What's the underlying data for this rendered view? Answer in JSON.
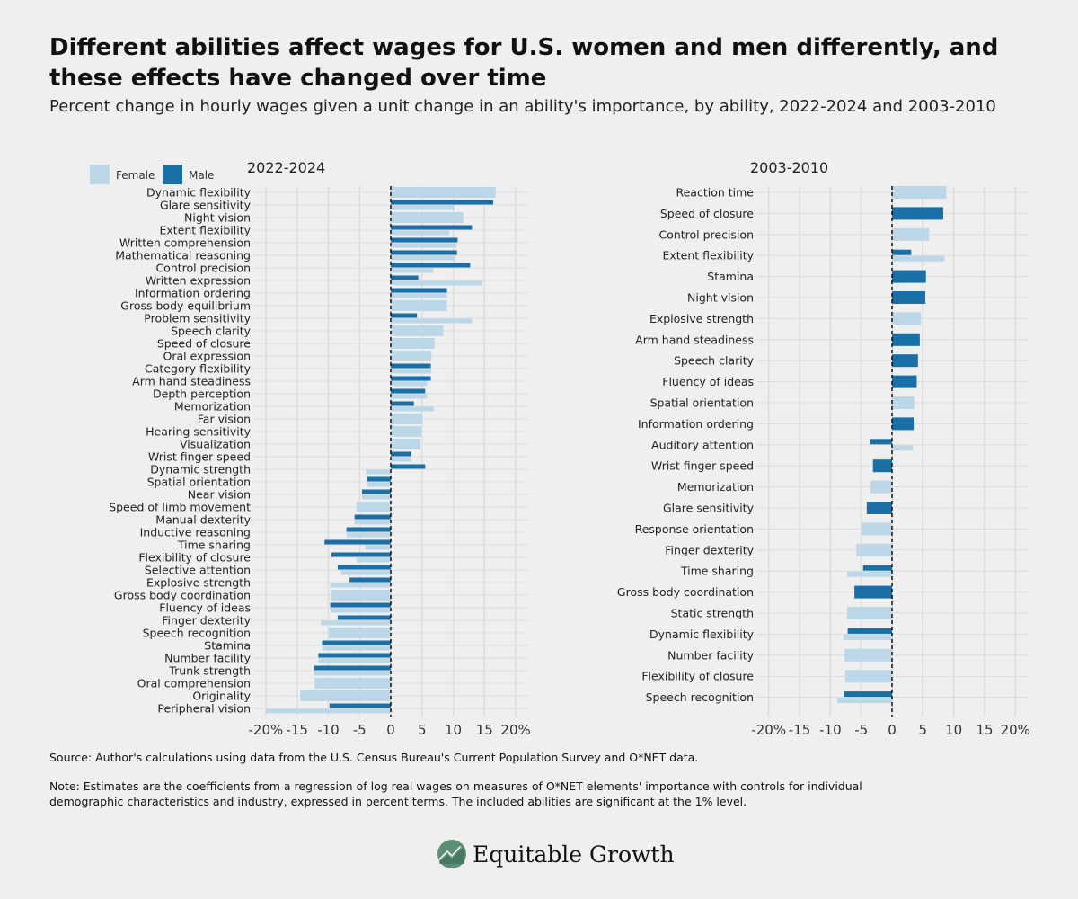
{
  "header": {
    "title": "Different abilities affect wages for U.S. women and men differently, and these effects have changed over time",
    "subtitle": "Percent change in hourly wages given a unit change in an ability's importance, by ability, 2022-2024 and 2003-2010"
  },
  "colors": {
    "female": "#bcd8e8",
    "male": "#1a6fa6",
    "grid": "#dcdcdc",
    "background": "#efefef"
  },
  "legend": {
    "female": "Female",
    "male": "Male"
  },
  "chart_data": [
    {
      "type": "bar",
      "orientation": "horizontal",
      "title": "2022-2024",
      "xlim": [
        -22,
        22
      ],
      "x_ticks": [
        -20,
        -15,
        -10,
        -5,
        0,
        5,
        10,
        15,
        20
      ],
      "x_tick_labels": [
        "-20%",
        "-15",
        "-10",
        "-5",
        "0",
        "5",
        "10",
        "15",
        "20%"
      ],
      "categories": [
        "Dynamic flexibility",
        "Glare sensitivity",
        "Night vision",
        "Extent flexibility",
        "Written comprehension",
        "Mathematical reasoning",
        "Control precision",
        "Written expression",
        "Information ordering",
        "Gross body equilibrium",
        "Problem sensitivity",
        "Speech clarity",
        "Speed of closure",
        "Oral expression",
        "Category flexibility",
        "Arm hand steadiness",
        "Depth perception",
        "Memorization",
        "Far vision",
        "Hearing sensitivity",
        "Visualization",
        "Wrist finger speed",
        "Dynamic strength",
        "Spatial orientation",
        "Near vision",
        "Speed of limb movement",
        "Manual dexterity",
        "Inductive reasoning",
        "Time sharing",
        "Flexibility of closure",
        "Selective attention",
        "Explosive strength",
        "Gross body coordination",
        "Fluency of ideas",
        "Finger dexterity",
        "Speech recognition",
        "Stamina",
        "Number facility",
        "Trunk strength",
        "Oral comprehension",
        "Originality",
        "Peripheral vision"
      ],
      "series": [
        {
          "name": "Female",
          "values": [
            16.8,
            10.2,
            11.6,
            9.4,
            10.5,
            10.3,
            6.8,
            14.5,
            9.0,
            9.0,
            13.0,
            8.4,
            7.0,
            6.5,
            6.5,
            5.8,
            5.8,
            6.9,
            5.1,
            4.9,
            4.7,
            3.3,
            -4.0,
            -3.8,
            -4.6,
            -5.5,
            -5.8,
            -7.1,
            -4.1,
            -5.5,
            -8.0,
            -9.7,
            -9.6,
            -9.7,
            -11.2,
            -9.9,
            -11.0,
            -11.6,
            -12.3,
            -12.2,
            -14.5,
            -20.0
          ]
        },
        {
          "name": "Male",
          "values": [
            null,
            16.4,
            null,
            13.0,
            10.7,
            10.6,
            12.7,
            4.4,
            9.0,
            null,
            4.2,
            null,
            null,
            null,
            6.4,
            6.4,
            5.5,
            3.7,
            null,
            null,
            null,
            3.3,
            5.5,
            -3.8,
            -4.6,
            null,
            -5.8,
            -7.1,
            -10.6,
            -9.5,
            -8.5,
            -6.6,
            null,
            -9.7,
            -8.5,
            null,
            -11.0,
            -11.6,
            -12.3,
            null,
            null,
            -9.8
          ]
        }
      ]
    },
    {
      "type": "bar",
      "orientation": "horizontal",
      "title": "2003-2010",
      "xlim": [
        -22,
        22
      ],
      "x_ticks": [
        -20,
        -15,
        -10,
        -5,
        0,
        5,
        10,
        15,
        20
      ],
      "x_tick_labels": [
        "-20%",
        "-15",
        "-10",
        "-5",
        "0",
        "5",
        "10",
        "15",
        "20%"
      ],
      "categories": [
        "Reaction time",
        "Speed of closure",
        "Control precision",
        "Extent flexibility",
        "Stamina",
        "Night vision",
        "Explosive strength",
        "Arm hand steadiness",
        "Speech clarity",
        "Fluency of ideas",
        "Spatial orientation",
        "Information ordering",
        "Auditory attention",
        "Wrist finger speed",
        "Memorization",
        "Glare sensitivity",
        "Response orientation",
        "Finger dexterity",
        "Time sharing",
        "Gross body coordination",
        "Static strength",
        "Dynamic flexibility",
        "Number facility",
        "Flexibility of closure",
        "Speech recognition"
      ],
      "series": [
        {
          "name": "Female",
          "values": [
            8.8,
            null,
            6.0,
            8.5,
            null,
            null,
            4.7,
            null,
            null,
            null,
            3.6,
            null,
            3.4,
            null,
            -3.5,
            null,
            -5.0,
            -5.8,
            -7.3,
            null,
            -7.3,
            -7.9,
            -7.7,
            -7.6,
            -8.9
          ]
        },
        {
          "name": "Male",
          "values": [
            null,
            8.3,
            null,
            3.1,
            5.5,
            5.4,
            null,
            4.5,
            4.2,
            4.0,
            null,
            3.5,
            -3.6,
            -3.1,
            null,
            -4.1,
            null,
            null,
            -4.7,
            -6.1,
            null,
            -7.2,
            null,
            null,
            -7.8
          ]
        }
      ]
    }
  ],
  "footer": {
    "source": "Source: Author's calculations using data from the U.S. Census Bureau's Current Population Survey and O*NET data.",
    "note": "Note: Estimates are the coefficients from a regression of log real wages on measures of O*NET elements' importance with controls for individual demographic characteristics and industry, expressed in percent terms. The included abilities are significant at the 1% level."
  },
  "brand": {
    "name": "Equitable Growth"
  }
}
